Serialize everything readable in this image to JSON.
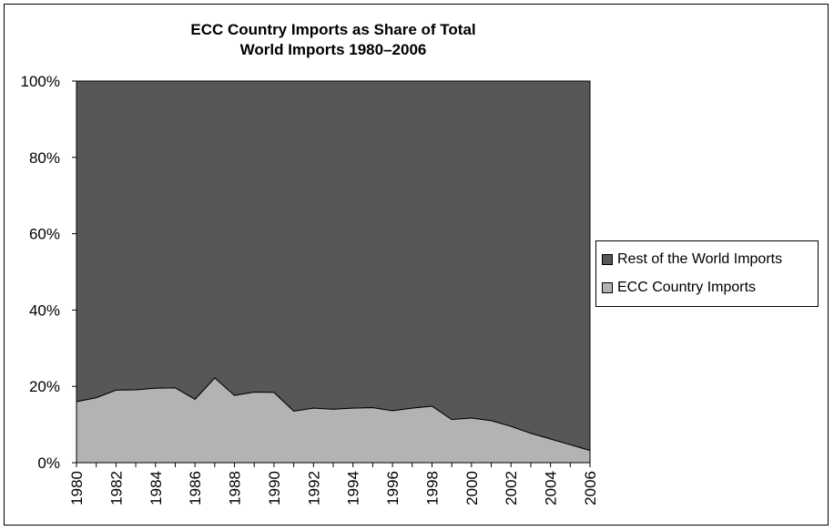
{
  "chart_data": {
    "type": "area",
    "stacked": "percent",
    "title": "ECC Country Imports as Share of Total World Imports 1980–2006",
    "title_lines": [
      "ECC Country Imports as Share of Total",
      "World Imports 1980–2006"
    ],
    "x": [
      1980,
      1981,
      1982,
      1983,
      1984,
      1985,
      1986,
      1987,
      1988,
      1989,
      1990,
      1991,
      1992,
      1993,
      1994,
      1995,
      1996,
      1997,
      1998,
      1999,
      2000,
      2001,
      2002,
      2003,
      2004,
      2005,
      2006
    ],
    "x_tick_labels": [
      "1980",
      "1982",
      "1984",
      "1986",
      "1988",
      "1990",
      "1992",
      "1994",
      "1996",
      "1998",
      "2000",
      "2002",
      "2004",
      "2006"
    ],
    "y_tick_labels": [
      "0%",
      "20%",
      "40%",
      "60%",
      "80%",
      "100%"
    ],
    "ylim": [
      0,
      100
    ],
    "grid": false,
    "legend_position": "right",
    "series": [
      {
        "name": "ECC Country Imports",
        "color": "#b3b3b3",
        "values": [
          16.0,
          17.0,
          19.0,
          19.1,
          19.5,
          19.6,
          16.6,
          22.2,
          17.6,
          18.5,
          18.4,
          13.5,
          14.3,
          14.0,
          14.3,
          14.4,
          13.6,
          14.3,
          14.8,
          11.3,
          11.7,
          11.0,
          9.5,
          7.7,
          6.2,
          4.7,
          3.2
        ]
      },
      {
        "name": "Rest of the World Imports",
        "color": "#575757",
        "values": [
          84.0,
          83.0,
          81.0,
          80.9,
          80.5,
          80.4,
          83.4,
          77.8,
          82.4,
          81.5,
          81.6,
          86.5,
          85.7,
          86.0,
          85.7,
          85.6,
          86.4,
          85.7,
          85.2,
          88.7,
          88.3,
          89.0,
          90.5,
          92.3,
          93.8,
          95.3,
          96.8
        ]
      }
    ],
    "legend_order": [
      "Rest of the World Imports",
      "ECC Country Imports"
    ]
  }
}
